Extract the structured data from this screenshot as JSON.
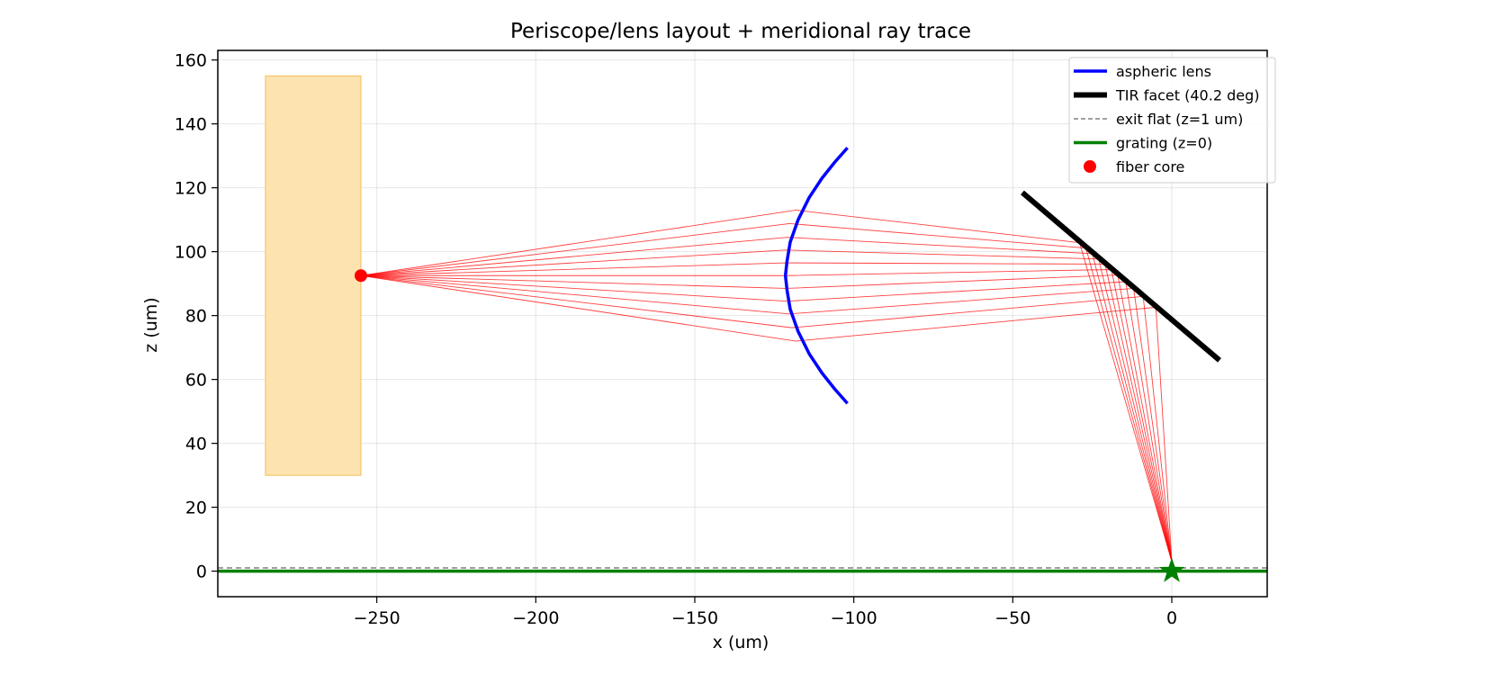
{
  "chart_data": {
    "type": "line",
    "title": "Periscope/lens layout + meridional ray trace",
    "xlabel": "x (um)",
    "ylabel": "z (um)",
    "xlim": [
      -300,
      30
    ],
    "ylim": [
      -8,
      163
    ],
    "xticks": [
      -250,
      -200,
      -150,
      -100,
      -50,
      0
    ],
    "yticks": [
      0,
      20,
      40,
      60,
      80,
      100,
      120,
      140,
      160
    ],
    "grid": true,
    "legend_position": "top-right",
    "fiber_block": {
      "x": [
        -285,
        -255
      ],
      "z": [
        30,
        155
      ],
      "color": "#fde3b0",
      "edge_color": "#f5c56a"
    },
    "fiber_core": {
      "name": "fiber core",
      "x": -255,
      "z": 92.5,
      "color": "#ff0000"
    },
    "lens": {
      "name": "aspheric lens",
      "color": "#0000ff",
      "points": [
        [
          -102,
          52.5
        ],
        [
          -106,
          57
        ],
        [
          -110,
          62
        ],
        [
          -114,
          68
        ],
        [
          -117.5,
          75
        ],
        [
          -120,
          82
        ],
        [
          -121,
          88
        ],
        [
          -121.5,
          92.5
        ],
        [
          -121,
          97
        ],
        [
          -120,
          103
        ],
        [
          -117.5,
          110
        ],
        [
          -114,
          117
        ],
        [
          -110,
          123
        ],
        [
          -106,
          128
        ],
        [
          -102,
          132.5
        ]
      ]
    },
    "tir_facet": {
      "name": "TIR facet (40.2 deg)",
      "color": "#000000",
      "x": [
        -47,
        15
      ],
      "z": [
        118.5,
        66
      ]
    },
    "exit_flat": {
      "name": "exit flat (z=1 um)",
      "color": "#808080",
      "z": 1
    },
    "grating": {
      "name": "grating (z=0)",
      "color": "#008000",
      "z": 0
    },
    "focus_star": {
      "x": 0,
      "z": 0,
      "color": "#008000"
    },
    "rays": {
      "color": "#ff0000",
      "source": [
        -255,
        92.5
      ],
      "focus": [
        0,
        3
      ],
      "lens_hits": [
        [
          -118.2,
          113
        ],
        [
          -120.2,
          108.8
        ],
        [
          -121.0,
          104.5
        ],
        [
          -121.4,
          100.5
        ],
        [
          -121.5,
          96.5
        ],
        [
          -121.5,
          92.5
        ],
        [
          -121.4,
          88.5
        ],
        [
          -121.0,
          84.5
        ],
        [
          -120.4,
          80.5
        ],
        [
          -119.5,
          76.2
        ],
        [
          -118.2,
          72
        ]
      ],
      "facet_hits": [
        [
          -29,
          102.8
        ],
        [
          -27,
          101.1
        ],
        [
          -25,
          99.4
        ],
        [
          -23,
          97.7
        ],
        [
          -21,
          96.1
        ],
        [
          -19,
          94.4
        ],
        [
          -17,
          92.7
        ],
        [
          -14.5,
          90.6
        ],
        [
          -12,
          88.5
        ],
        [
          -9,
          86
        ],
        [
          -5,
          82.6
        ]
      ]
    }
  }
}
